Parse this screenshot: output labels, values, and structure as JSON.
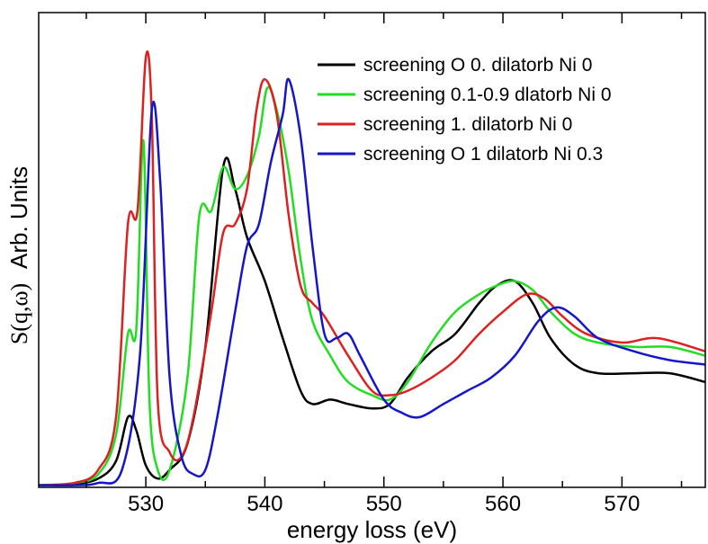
{
  "chart_data": {
    "type": "line",
    "xlabel": "energy loss (eV)",
    "ylabel_prefix": "S(q,ω)",
    "ylabel_units": "Arb. Units",
    "xlim": [
      521,
      577
    ],
    "ylim": [
      0,
      1
    ],
    "x_ticks": [
      530,
      540,
      550,
      560,
      570
    ],
    "y_ticks_labeled": false,
    "legend_position": "top-right",
    "colors": {
      "black": "#000000",
      "green": "#22dd22",
      "cyan": "#66cccc",
      "red": "#dd2020",
      "blue": "#1515cc"
    },
    "legend": [
      {
        "label": "screening O 0. dilatorb Ni 0",
        "color": "#000000"
      },
      {
        "label": "screening 0.1-0.9 dlatorb Ni 0",
        "color": "#22dd22"
      },
      {
        "label": "screening 1. dilatorb Ni 0",
        "color": "#dd2020"
      },
      {
        "label": "screening O 1 dilatorb Ni 0.3",
        "color": "#1515cc"
      }
    ],
    "series": [
      {
        "label": "screening O 0. dilatorb Ni 0",
        "color": "#000000",
        "points": [
          [
            521,
            0.005
          ],
          [
            524,
            0.008
          ],
          [
            526,
            0.02
          ],
          [
            527.5,
            0.06
          ],
          [
            528.5,
            0.16
          ],
          [
            529.2,
            0.13
          ],
          [
            530,
            0.05
          ],
          [
            531,
            0.02
          ],
          [
            532,
            0.04
          ],
          [
            533.5,
            0.1
          ],
          [
            535,
            0.32
          ],
          [
            536.5,
            0.73
          ],
          [
            537.5,
            0.68
          ],
          [
            538.5,
            0.57
          ],
          [
            540,
            0.47
          ],
          [
            541.5,
            0.34
          ],
          [
            543,
            0.22
          ],
          [
            544,
            0.19
          ],
          [
            545.5,
            0.2
          ],
          [
            547,
            0.19
          ],
          [
            549,
            0.18
          ],
          [
            550.5,
            0.19
          ],
          [
            552,
            0.25
          ],
          [
            554,
            0.31
          ],
          [
            556,
            0.35
          ],
          [
            558,
            0.42
          ],
          [
            559.5,
            0.46
          ],
          [
            561,
            0.47
          ],
          [
            562.5,
            0.42
          ],
          [
            564,
            0.34
          ],
          [
            566,
            0.28
          ],
          [
            568,
            0.26
          ],
          [
            571,
            0.26
          ],
          [
            574,
            0.26
          ],
          [
            577,
            0.24
          ]
        ]
      },
      {
        "label": "screening 0.1-0.9 dlatorb Ni 0",
        "color": "#22dd22",
        "points": [
          [
            521,
            0.005
          ],
          [
            524,
            0.01
          ],
          [
            526,
            0.03
          ],
          [
            527.5,
            0.12
          ],
          [
            528.5,
            0.35
          ],
          [
            529.2,
            0.36
          ],
          [
            529.8,
            0.79
          ],
          [
            530.3,
            0.2
          ],
          [
            531,
            0.04
          ],
          [
            532,
            0.04
          ],
          [
            533.5,
            0.25
          ],
          [
            534.5,
            0.62
          ],
          [
            535.5,
            0.63
          ],
          [
            536.5,
            0.73
          ],
          [
            537.5,
            0.68
          ],
          [
            538.5,
            0.71
          ],
          [
            539.5,
            0.8
          ],
          [
            540.2,
            0.91
          ],
          [
            541,
            0.86
          ],
          [
            542,
            0.72
          ],
          [
            543,
            0.52
          ],
          [
            544,
            0.38
          ],
          [
            545.5,
            0.3
          ],
          [
            547,
            0.24
          ],
          [
            549,
            0.21
          ],
          [
            550.5,
            0.2
          ],
          [
            552,
            0.24
          ],
          [
            554,
            0.33
          ],
          [
            556,
            0.4
          ],
          [
            558,
            0.44
          ],
          [
            559.5,
            0.46
          ],
          [
            561,
            0.47
          ],
          [
            562.5,
            0.45
          ],
          [
            564,
            0.4
          ],
          [
            566,
            0.35
          ],
          [
            568,
            0.33
          ],
          [
            571,
            0.32
          ],
          [
            574,
            0.32
          ],
          [
            577,
            0.3
          ]
        ]
      },
      {
        "label": "screening 1. dilatorb Ni 0",
        "color": "#dd2020",
        "points": [
          [
            521,
            0.005
          ],
          [
            524,
            0.01
          ],
          [
            526,
            0.04
          ],
          [
            527.5,
            0.16
          ],
          [
            528.5,
            0.6
          ],
          [
            529.3,
            0.63
          ],
          [
            530,
            0.98
          ],
          [
            530.5,
            0.85
          ],
          [
            531,
            0.2
          ],
          [
            532,
            0.08
          ],
          [
            533,
            0.07
          ],
          [
            534,
            0.16
          ],
          [
            535.5,
            0.4
          ],
          [
            536.5,
            0.58
          ],
          [
            537.5,
            0.6
          ],
          [
            538.5,
            0.68
          ],
          [
            539.3,
            0.86
          ],
          [
            540,
            0.93
          ],
          [
            541,
            0.85
          ],
          [
            542,
            0.62
          ],
          [
            543,
            0.46
          ],
          [
            544,
            0.42
          ],
          [
            545,
            0.39
          ],
          [
            547,
            0.3
          ],
          [
            549,
            0.22
          ],
          [
            550.5,
            0.21
          ],
          [
            552,
            0.22
          ],
          [
            554,
            0.25
          ],
          [
            556,
            0.29
          ],
          [
            558,
            0.35
          ],
          [
            560,
            0.4
          ],
          [
            562,
            0.44
          ],
          [
            563.5,
            0.43
          ],
          [
            565,
            0.39
          ],
          [
            567,
            0.35
          ],
          [
            570,
            0.33
          ],
          [
            573,
            0.34
          ],
          [
            577,
            0.31
          ]
        ]
      },
      {
        "label": "screening O 1 dilatorb Ni 0.3",
        "color": "#1515cc",
        "points": [
          [
            521,
            0.005
          ],
          [
            524,
            0.005
          ],
          [
            526,
            0.01
          ],
          [
            528,
            0.04
          ],
          [
            529.5,
            0.3
          ],
          [
            530.5,
            0.86
          ],
          [
            531.2,
            0.7
          ],
          [
            532,
            0.25
          ],
          [
            533,
            0.07
          ],
          [
            534,
            0.03
          ],
          [
            535,
            0.04
          ],
          [
            536,
            0.16
          ],
          [
            537.5,
            0.4
          ],
          [
            538.5,
            0.55
          ],
          [
            539.5,
            0.6
          ],
          [
            540.5,
            0.74
          ],
          [
            541.5,
            0.85
          ],
          [
            542,
            0.93
          ],
          [
            543,
            0.8
          ],
          [
            544,
            0.55
          ],
          [
            545,
            0.35
          ],
          [
            546,
            0.34
          ],
          [
            547,
            0.35
          ],
          [
            548,
            0.3
          ],
          [
            550,
            0.2
          ],
          [
            551.5,
            0.17
          ],
          [
            553,
            0.16
          ],
          [
            555,
            0.19
          ],
          [
            557,
            0.22
          ],
          [
            559,
            0.25
          ],
          [
            561,
            0.3
          ],
          [
            563,
            0.38
          ],
          [
            564.5,
            0.41
          ],
          [
            566,
            0.39
          ],
          [
            568,
            0.34
          ],
          [
            571,
            0.31
          ],
          [
            574,
            0.29
          ],
          [
            577,
            0.28
          ]
        ]
      }
    ]
  }
}
